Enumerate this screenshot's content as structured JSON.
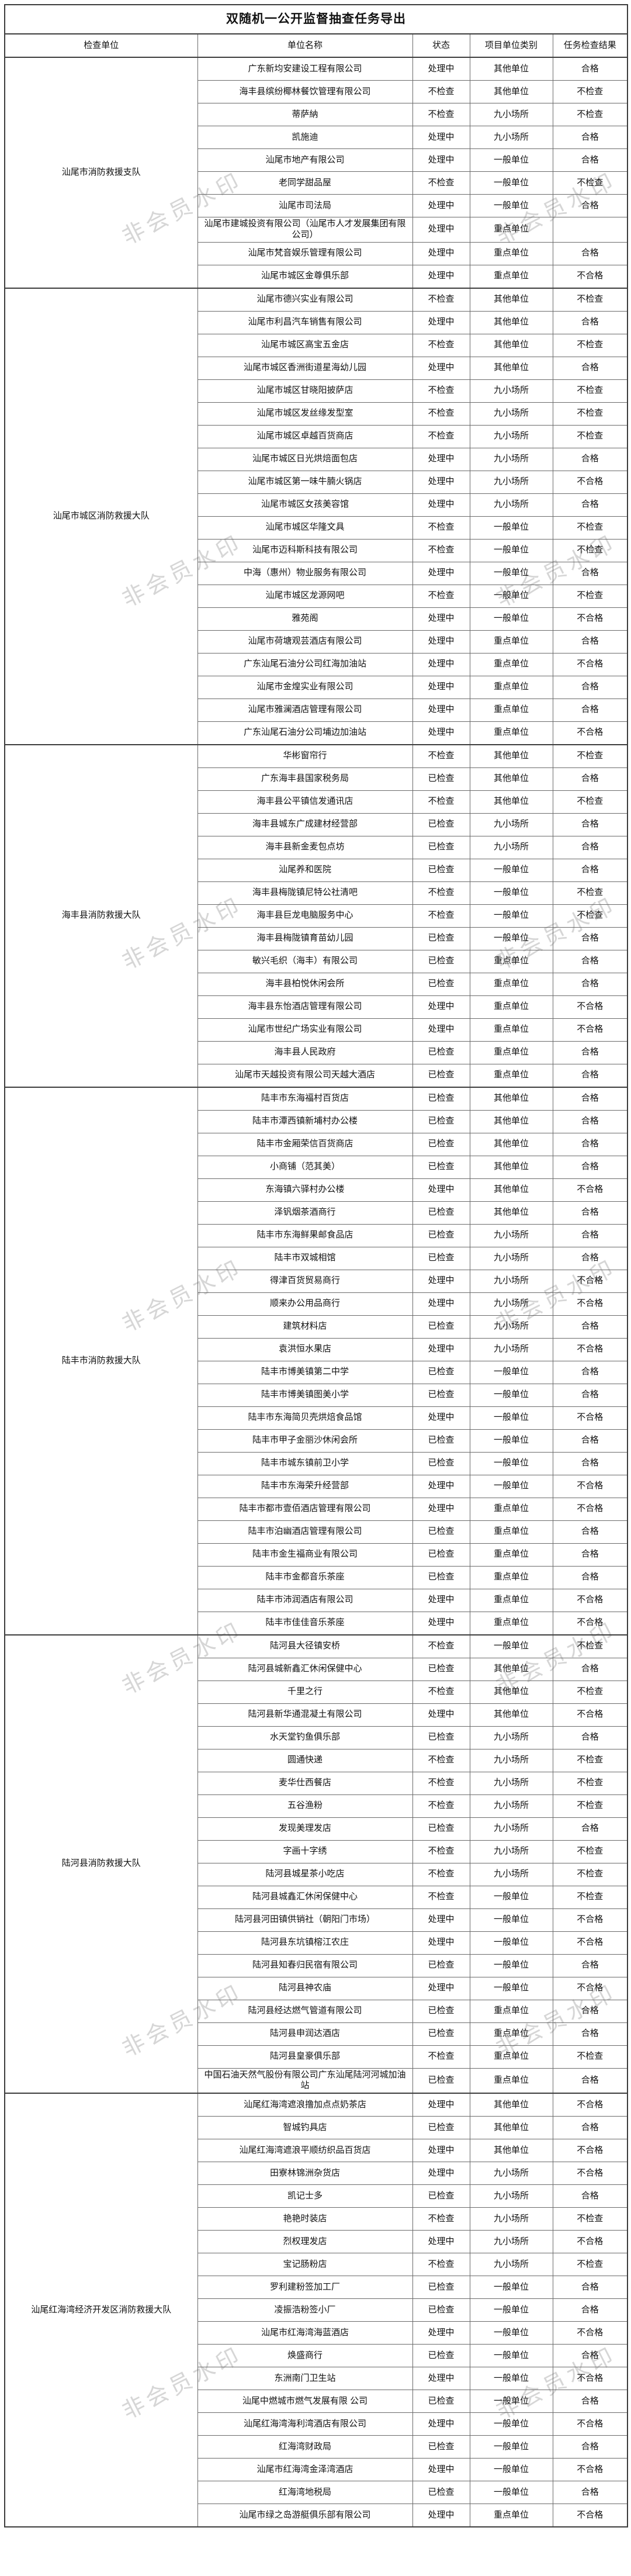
{
  "title": "双随机一公开监督抽查任务导出",
  "columns": [
    "检查单位",
    "单位名称",
    "状态",
    "项目单位类别",
    "任务检查结果"
  ],
  "watermark": {
    "text": "非会员水印",
    "color": "#d6d6d6"
  },
  "groups": [
    {
      "inspector": "汕尾市消防救援支队",
      "rows": [
        [
          "广东新均安建设工程有限公司",
          "处理中",
          "其他单位",
          "合格"
        ],
        [
          "海丰县缤纷椰林餐饮管理有限公司",
          "不检查",
          "其他单位",
          "不检查"
        ],
        [
          "蒂萨納",
          "不检查",
          "九小场所",
          "不检查"
        ],
        [
          "凯施迪",
          "处理中",
          "九小场所",
          "合格"
        ],
        [
          "汕尾市地产有限公司",
          "处理中",
          "一般单位",
          "合格"
        ],
        [
          "老同学甜品屋",
          "不检查",
          "一般单位",
          "不检查"
        ],
        [
          "汕尾市司法局",
          "处理中",
          "一般单位",
          "合格"
        ],
        [
          "汕尾市建城投资有限公司（汕尾市人才发展集团有限公司）",
          "处理中",
          "重点单位",
          ""
        ],
        [
          "汕尾市梵音娱乐管理有限公司",
          "处理中",
          "重点单位",
          "合格"
        ],
        [
          "汕尾市城区金尊俱乐部",
          "处理中",
          "重点单位",
          "不合格"
        ]
      ]
    },
    {
      "inspector": "汕尾市城区消防救援大队",
      "rows": [
        [
          "汕尾市德兴实业有限公司",
          "不检查",
          "其他单位",
          "不检查"
        ],
        [
          "汕尾市利昌汽车销售有限公司",
          "处理中",
          "其他单位",
          "合格"
        ],
        [
          "汕尾市城区高宝五金店",
          "不检查",
          "其他单位",
          "不检查"
        ],
        [
          "汕尾市城区香洲街道星海幼儿园",
          "处理中",
          "其他单位",
          "合格"
        ],
        [
          "汕尾市城区甘晓阳披萨店",
          "不检查",
          "九小场所",
          "不检查"
        ],
        [
          "汕尾市城区发丝缘发型室",
          "不检查",
          "九小场所",
          "不检查"
        ],
        [
          "汕尾市城区卓越百货商店",
          "不检查",
          "九小场所",
          "不检查"
        ],
        [
          "汕尾市城区日光烘焙面包店",
          "处理中",
          "九小场所",
          "合格"
        ],
        [
          "汕尾市城区第一味牛腩火锅店",
          "处理中",
          "九小场所",
          "不合格"
        ],
        [
          "汕尾市城区女孩美容馆",
          "处理中",
          "九小场所",
          "合格"
        ],
        [
          "汕尾市城区华隆文具",
          "不检查",
          "一般单位",
          "不检查"
        ],
        [
          "汕尾市迈科斯科技有限公司",
          "不检查",
          "一般单位",
          "不检查"
        ],
        [
          "中海（惠州）物业服务有限公司",
          "处理中",
          "一般单位",
          "合格"
        ],
        [
          "汕尾市城区龙源网吧",
          "不检查",
          "一般单位",
          "不检查"
        ],
        [
          "雅苑阁",
          "处理中",
          "一般单位",
          "不合格"
        ],
        [
          "汕尾市荷塘观芸酒店有限公司",
          "处理中",
          "重点单位",
          "合格"
        ],
        [
          "广东汕尾石油分公司红海加油站",
          "处理中",
          "重点单位",
          "不合格"
        ],
        [
          "汕尾市金煌实业有限公司",
          "处理中",
          "重点单位",
          "合格"
        ],
        [
          "汕尾市雅澜酒店管理有限公司",
          "处理中",
          "重点单位",
          "合格"
        ],
        [
          "广东汕尾石油分公司埔边加油站",
          "处理中",
          "重点单位",
          "不合格"
        ]
      ]
    },
    {
      "inspector": "海丰县消防救援大队",
      "rows": [
        [
          "华彬窗帘行",
          "不检查",
          "其他单位",
          "不检查"
        ],
        [
          "广东海丰县国家税务局",
          "已检查",
          "其他单位",
          "合格"
        ],
        [
          "海丰县公平镇信发通讯店",
          "不检查",
          "其他单位",
          "不检查"
        ],
        [
          "海丰县城东广成建材经营部",
          "已检查",
          "九小场所",
          "合格"
        ],
        [
          "海丰县新金麦包点坊",
          "已检查",
          "九小场所",
          "合格"
        ],
        [
          "汕尾养和医院",
          "已检查",
          "一般单位",
          "合格"
        ],
        [
          "海丰县梅陇镇尼特公社清吧",
          "不检查",
          "一般单位",
          "不检查"
        ],
        [
          "海丰县巨龙电脑服务中心",
          "不检查",
          "一般单位",
          "不检查"
        ],
        [
          "海丰县梅陇镇育苗幼儿园",
          "已检查",
          "一般单位",
          "合格"
        ],
        [
          "敏兴毛织（海丰）有限公司",
          "已检查",
          "重点单位",
          "合格"
        ],
        [
          "海丰县柏悦休闲会所",
          "已检查",
          "重点单位",
          "合格"
        ],
        [
          "海丰县东怡酒店管理有限公司",
          "处理中",
          "重点单位",
          "不合格"
        ],
        [
          "汕尾市世纪广场实业有限公司",
          "处理中",
          "重点单位",
          "不合格"
        ],
        [
          "海丰县人民政府",
          "已检查",
          "重点单位",
          "合格"
        ],
        [
          "汕尾市天越投资有限公司天越大酒店",
          "已检查",
          "重点单位",
          "合格"
        ]
      ]
    },
    {
      "inspector": "陆丰市消防救援大队",
      "rows": [
        [
          "陆丰市东海福村百货店",
          "已检查",
          "其他单位",
          "合格"
        ],
        [
          "陆丰市潭西镇新埔村办公楼",
          "已检查",
          "其他单位",
          "合格"
        ],
        [
          "陆丰市金厢荣信百货商店",
          "已检查",
          "其他单位",
          "合格"
        ],
        [
          "小商铺（范其美）",
          "已检查",
          "其他单位",
          "合格"
        ],
        [
          "东海镇六驿村办公楼",
          "处理中",
          "其他单位",
          "不合格"
        ],
        [
          "泽钒烟茶酒商行",
          "已检查",
          "其他单位",
          "合格"
        ],
        [
          "陆丰市东海鲜果邮食品店",
          "已检查",
          "九小场所",
          "合格"
        ],
        [
          "陆丰市双城相馆",
          "已检查",
          "九小场所",
          "合格"
        ],
        [
          "得津百货贸易商行",
          "处理中",
          "九小场所",
          "不合格"
        ],
        [
          "顺来办公用品商行",
          "处理中",
          "九小场所",
          "不合格"
        ],
        [
          "建筑材料店",
          "已检查",
          "九小场所",
          "合格"
        ],
        [
          "袁洪恒水果店",
          "处理中",
          "九小场所",
          "不合格"
        ],
        [
          "陆丰市博美镇第二中学",
          "已检查",
          "一般单位",
          "合格"
        ],
        [
          "陆丰市博美镇图美小学",
          "已检查",
          "一般单位",
          "合格"
        ],
        [
          "陆丰市东海简贝壳烘焙食品馆",
          "处理中",
          "一般单位",
          "不合格"
        ],
        [
          "陆丰市甲子金丽沙休闲会所",
          "已检查",
          "一般单位",
          "合格"
        ],
        [
          "陆丰市城东镇前卫小学",
          "已检查",
          "一般单位",
          "合格"
        ],
        [
          "陆丰市东海荣升经营部",
          "处理中",
          "一般单位",
          "不合格"
        ],
        [
          "陆丰市都市壹佰酒店管理有限公司",
          "处理中",
          "重点单位",
          "不合格"
        ],
        [
          "陆丰市泊幽酒店管理有限公司",
          "已检查",
          "重点单位",
          "合格"
        ],
        [
          "陆丰市金生福商业有限公司",
          "已检查",
          "重点单位",
          "合格"
        ],
        [
          "陆丰市金都音乐茶座",
          "已检查",
          "重点单位",
          "合格"
        ],
        [
          "陆丰市沛润酒店有限公司",
          "处理中",
          "重点单位",
          "不合格"
        ],
        [
          "陆丰市佳佳音乐茶座",
          "处理中",
          "重点单位",
          "不合格"
        ]
      ]
    },
    {
      "inspector": "陆河县消防救援大队",
      "rows": [
        [
          "陆河县大径镇安桥",
          "不检查",
          "一般单位",
          "不检查"
        ],
        [
          "陆河县城新鑫汇休闲保健中心",
          "已检查",
          "其他单位",
          "合格"
        ],
        [
          "千里之行",
          "不检查",
          "其他单位",
          "不检查"
        ],
        [
          "陆河县新华通混凝土有限公司",
          "处理中",
          "其他单位",
          "不合格"
        ],
        [
          "水天堂钓鱼俱乐部",
          "已检查",
          "九小场所",
          "合格"
        ],
        [
          "圆通快递",
          "不检查",
          "九小场所",
          "不检查"
        ],
        [
          "麦华仕西餐店",
          "不检查",
          "九小场所",
          "不检查"
        ],
        [
          "五谷渔粉",
          "不检查",
          "九小场所",
          "不检查"
        ],
        [
          "发现美理发店",
          "已检查",
          "九小场所",
          "合格"
        ],
        [
          "字画十字绣",
          "不检查",
          "九小场所",
          "不检查"
        ],
        [
          "陆河县城星茶小吃店",
          "不检查",
          "九小场所",
          "不检查"
        ],
        [
          "陆河县城鑫汇休闲保健中心",
          "不检查",
          "一般单位",
          "不检查"
        ],
        [
          "陆河县河田镇供销社（朝阳门市场）",
          "处理中",
          "一般单位",
          "不合格"
        ],
        [
          "陆河县东坑镇榕江农庄",
          "处理中",
          "一般单位",
          "不合格"
        ],
        [
          "陆河县知春归民宿有限公司",
          "已检查",
          "一般单位",
          "合格"
        ],
        [
          "陆河县神农庙",
          "处理中",
          "一般单位",
          "不合格"
        ],
        [
          "陆河县经达燃气管道有限公司",
          "已检查",
          "重点单位",
          "合格"
        ],
        [
          "陆河县申润达酒店",
          "已检查",
          "重点单位",
          "合格"
        ],
        [
          "陆河县皇豪俱乐部",
          "不检查",
          "重点单位",
          "不检查"
        ],
        [
          "中国石油天然气股份有限公司广东汕尾陆河河城加油站",
          "已检查",
          "重点单位",
          "合格"
        ]
      ]
    },
    {
      "inspector": "汕尾红海湾经济开发区消防救援大队",
      "rows": [
        [
          "汕尾红海湾遮浪撸加点点奶茶店",
          "处理中",
          "其他单位",
          "不合格"
        ],
        [
          "智城钓具店",
          "已检查",
          "其他单位",
          "合格"
        ],
        [
          "汕尾红海湾遮浪平顺纺织品百货店",
          "处理中",
          "其他单位",
          "不合格"
        ],
        [
          "田寮林锦洲杂货店",
          "处理中",
          "九小场所",
          "不合格"
        ],
        [
          "凯记士多",
          "已检查",
          "九小场所",
          "合格"
        ],
        [
          "艳艳时装店",
          "不检查",
          "九小场所",
          "不检查"
        ],
        [
          "烈权理发店",
          "处理中",
          "九小场所",
          "不合格"
        ],
        [
          "宝记肠粉店",
          "不检查",
          "九小场所",
          "不检查"
        ],
        [
          "罗利建粉签加工厂",
          "已检查",
          "一般单位",
          "合格"
        ],
        [
          "凌振浩粉签小厂",
          "已检查",
          "一般单位",
          "合格"
        ],
        [
          "汕尾市红海湾海蓝酒店",
          "处理中",
          "一般单位",
          "不合格"
        ],
        [
          "焕盛商行",
          "已检查",
          "一般单位",
          "合格"
        ],
        [
          "东洲南门卫生站",
          "处理中",
          "一般单位",
          "不合格"
        ],
        [
          "汕尾中燃城市燃气发展有限 公司",
          "已检查",
          "一般单位",
          "合格"
        ],
        [
          "汕尾红海湾海利湾酒店有限公司",
          "处理中",
          "一般单位",
          "不合格"
        ],
        [
          "红海湾财政局",
          "已检查",
          "一般单位",
          "合格"
        ],
        [
          "汕尾市红海湾金泽湾酒店",
          "处理中",
          "一般单位",
          "不合格"
        ],
        [
          "红海湾地税局",
          "已检查",
          "一般单位",
          "合格"
        ],
        [
          "汕尾市绿之岛游艇俱乐部有限公司",
          "处理中",
          "重点单位",
          "不合格"
        ]
      ]
    }
  ]
}
